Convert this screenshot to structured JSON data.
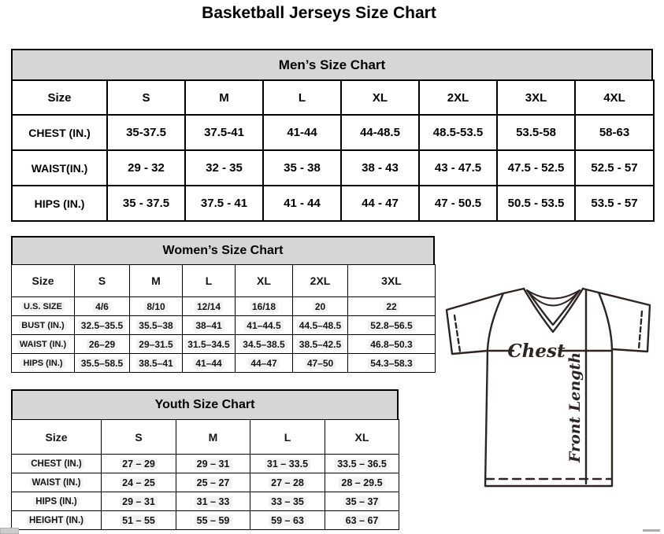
{
  "page_title": "Basketball Jerseys Size Chart",
  "tables": {
    "mens": {
      "title": "Men’s Size Chart",
      "columns": [
        "Size",
        "S",
        "M",
        "L",
        "XL",
        "2XL",
        "3XL",
        "4XL"
      ],
      "rows": [
        [
          "CHEST (IN.)",
          "35-37.5",
          "37.5-41",
          "41-44",
          "44-48.5",
          "48.5-53.5",
          "53.5-58",
          "58-63"
        ],
        [
          "WAIST(IN.)",
          "29 - 32",
          "32 - 35",
          "35 - 38",
          "38 - 43",
          "43 - 47.5",
          "47.5 - 52.5",
          "52.5 - 57"
        ],
        [
          "HIPS (IN.)",
          "35 - 37.5",
          "37.5 - 41",
          "41 - 44",
          "44 - 47",
          "47 - 50.5",
          "50.5 - 53.5",
          "53.5 - 57"
        ]
      ]
    },
    "womens": {
      "title": "Women’s Size Chart",
      "columns": [
        "Size",
        "S",
        "M",
        "L",
        "XL",
        "2XL",
        "3XL"
      ],
      "rows": [
        [
          "U.S. SIZE",
          "4/6",
          "8/10",
          "12/14",
          "16/18",
          "20",
          "22"
        ],
        [
          "BUST (IN.)",
          "32.5–35.5",
          "35.5–38",
          "38–41",
          "41–44.5",
          "44.5–48.5",
          "52.8–56.5"
        ],
        [
          "WAIST (IN.)",
          "26–29",
          "29–31.5",
          "31.5–34.5",
          "34.5–38.5",
          "38.5–42.5",
          "46.8–50.3"
        ],
        [
          "HIPS (IN.)",
          "35.5–58.5",
          "38.5–41",
          "41–44",
          "44–47",
          "47–50",
          "54.3–58.3"
        ]
      ]
    },
    "youth": {
      "title": "Youth Size Chart",
      "columns": [
        "Size",
        "S",
        "M",
        "L",
        "XL"
      ],
      "rows": [
        [
          "CHEST (IN.)",
          "27 – 29",
          "29 – 31",
          "31 – 33.5",
          "33.5 – 36.5"
        ],
        [
          "WAIST (IN.)",
          "24 – 25",
          "25 – 27",
          "27 – 28",
          "28 – 29.5"
        ],
        [
          "HIPS (IN.)",
          "29 – 31",
          "31 – 33",
          "33 – 35",
          "35 – 37"
        ],
        [
          "HEIGHT (IN.)",
          "51 – 55",
          "55 – 59",
          "59 – 63",
          "63 – 67"
        ]
      ]
    }
  },
  "diagram": {
    "chest_label": "Chest",
    "front_length_label": "Front Length"
  },
  "colors": {
    "band_gray": "#d6d6d6",
    "table_border": "#000000",
    "diagram_ink": "#2e2522",
    "cell_highlight": "#f2f2f2"
  }
}
